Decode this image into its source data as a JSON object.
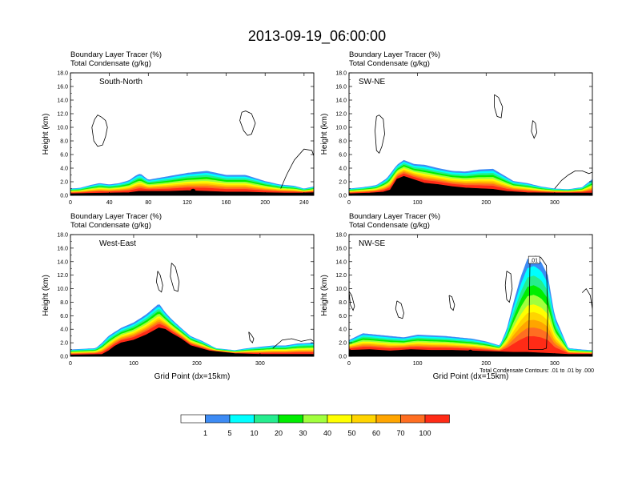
{
  "title": "2013-09-19_06:00:00",
  "chart_data": {
    "type": "heatmap",
    "title": "2013-09-19_06:00:00",
    "field_shaded": "Boundary Layer Tracer (%)",
    "field_contoured": "Total Condensate (g/kg)",
    "panels": [
      {
        "id": "south-north",
        "cross_section": "South-North",
        "title_line1": "Boundary Layer Tracer   (%)",
        "title_line2": "Total Condensate   (g/kg)",
        "ylabel": "Height (km)",
        "xlabel": "",
        "ylim": [
          0,
          18
        ],
        "yticks": [
          "0.0",
          "2.0",
          "4.0",
          "6.0",
          "8.0",
          "10.0",
          "12.0",
          "14.0",
          "16.0",
          "18.0"
        ],
        "xlim": [
          0,
          250
        ],
        "xticks": [
          "0",
          "40",
          "80",
          "120",
          "160",
          "200",
          "240"
        ],
        "xtick_values": [
          0,
          40,
          80,
          120,
          160,
          200,
          240
        ],
        "marker_x": 126,
        "profile": {
          "x": [
            0,
            10,
            20,
            30,
            40,
            50,
            60,
            68,
            72,
            80,
            100,
            120,
            140,
            160,
            180,
            200,
            215,
            230,
            240,
            250
          ],
          "h": [
            1.0,
            1.1,
            1.5,
            1.8,
            1.6,
            1.8,
            2.2,
            3.0,
            3.2,
            2.3,
            2.8,
            3.3,
            3.6,
            3.0,
            3.0,
            2.1,
            1.6,
            1.4,
            1.0,
            1.3
          ]
        },
        "ground": {
          "x": [
            0,
            20,
            40,
            60,
            70,
            80,
            100,
            120,
            140,
            160,
            180,
            200,
            220,
            240,
            250
          ],
          "h": [
            0.25,
            0.3,
            0.35,
            0.4,
            0.6,
            0.6,
            0.6,
            0.7,
            0.6,
            0.5,
            0.5,
            0.4,
            0.35,
            0.35,
            0.4
          ]
        },
        "contours": [
          {
            "x": [
              25,
              28,
              32,
              36,
              38,
              36,
              33,
              28,
              24,
              22,
              25
            ],
            "h": [
              11.2,
              11.8,
              11.5,
              11.0,
              10.0,
              8.6,
              7.4,
              7.2,
              8.0,
              10.0,
              11.2
            ]
          },
          {
            "x": [
              176,
              180,
              186,
              190,
              186,
              182,
              178,
              174,
              176
            ],
            "h": [
              12.2,
              12.4,
              12.0,
              10.6,
              9.0,
              8.8,
              9.5,
              11.0,
              12.2
            ]
          },
          {
            "x": [
              216,
              222,
              230,
              240,
              248,
              250
            ],
            "h": [
              1.0,
              3.0,
              5.2,
              6.8,
              6.6,
              5.8
            ]
          }
        ]
      },
      {
        "id": "sw-ne",
        "cross_section": "SW-NE",
        "title_line1": "Boundary Layer Tracer   (%)",
        "title_line2": "Total Condensate   (g/kg)",
        "ylabel": "Height (km)",
        "xlabel": "",
        "ylim": [
          0,
          18
        ],
        "yticks": [
          "0.0",
          "2.0",
          "4.0",
          "6.0",
          "8.0",
          "10.0",
          "12.0",
          "14.0",
          "16.0",
          "18.0"
        ],
        "xlim": [
          0,
          355
        ],
        "xticks": [
          "0",
          "100",
          "200",
          "300"
        ],
        "xtick_values": [
          0,
          100,
          200,
          300
        ],
        "marker_x": 176,
        "profile": {
          "x": [
            0,
            20,
            40,
            55,
            70,
            80,
            95,
            110,
            130,
            150,
            170,
            190,
            210,
            225,
            240,
            260,
            280,
            300,
            320,
            340,
            355
          ],
          "h": [
            1.0,
            1.2,
            1.5,
            2.5,
            4.5,
            5.2,
            4.6,
            4.5,
            4.0,
            3.6,
            3.5,
            3.8,
            3.9,
            3.0,
            2.1,
            1.8,
            1.3,
            1.0,
            0.9,
            1.2,
            2.4
          ]
        },
        "ground": {
          "x": [
            0,
            30,
            50,
            60,
            70,
            80,
            95,
            110,
            130,
            150,
            170,
            190,
            210,
            230,
            260,
            300,
            355
          ],
          "h": [
            0.25,
            0.35,
            0.5,
            0.8,
            2.4,
            2.8,
            2.3,
            1.8,
            1.6,
            1.3,
            1.1,
            1.0,
            0.9,
            0.6,
            0.4,
            0.35,
            0.35
          ]
        },
        "contours": [
          {
            "x": [
              40,
              44,
              50,
              52,
              48,
              44,
              40,
              38,
              40
            ],
            "h": [
              11.6,
              11.8,
              11.2,
              9.0,
              7.2,
              6.2,
              6.6,
              9.5,
              11.6
            ]
          },
          {
            "x": [
              212,
              218,
              224,
              222,
              216,
              212,
              212
            ],
            "h": [
              14.8,
              14.4,
              13.0,
              11.4,
              11.6,
              13.0,
              14.8
            ]
          },
          {
            "x": [
              268,
              272,
              274,
              270,
              266,
              268
            ],
            "h": [
              11.0,
              10.6,
              9.2,
              8.4,
              9.4,
              11.0
            ]
          },
          {
            "x": [
              300,
              310,
              320,
              330,
              340,
              350,
              355
            ],
            "h": [
              1.0,
              2.2,
              3.0,
              3.6,
              3.6,
              3.2,
              3.4
            ]
          }
        ]
      },
      {
        "id": "west-east",
        "cross_section": "West-East",
        "title_line1": "Boundary Layer Tracer   (%)",
        "title_line2": "Total Condensate   (g/kg)",
        "ylabel": "Height (km)",
        "xlabel": "Grid Point (dx=15km)",
        "ylim": [
          0,
          18
        ],
        "yticks": [
          "0.0",
          "2.0",
          "4.0",
          "6.0",
          "8.0",
          "10.0",
          "12.0",
          "14.0",
          "16.0",
          "18.0"
        ],
        "xlim": [
          0,
          385
        ],
        "xticks": [
          "0",
          "100",
          "200",
          "300"
        ],
        "xtick_values": [
          0,
          100,
          200,
          300
        ],
        "marker_x": 190,
        "profile": {
          "x": [
            0,
            20,
            40,
            50,
            60,
            80,
            100,
            120,
            140,
            150,
            160,
            175,
            190,
            210,
            230,
            260,
            280,
            300,
            320,
            340,
            360,
            385
          ],
          "h": [
            1.0,
            1.1,
            1.2,
            2.0,
            3.0,
            4.2,
            5.0,
            6.2,
            7.8,
            6.5,
            5.5,
            4.2,
            3.0,
            2.2,
            1.2,
            0.9,
            1.2,
            1.4,
            1.6,
            1.6,
            1.9,
            2.0
          ]
        },
        "ground": {
          "x": [
            0,
            30,
            50,
            60,
            70,
            80,
            100,
            120,
            140,
            150,
            160,
            175,
            190,
            220,
            260,
            300,
            340,
            385
          ],
          "h": [
            0.2,
            0.25,
            0.3,
            0.8,
            1.5,
            2.0,
            2.4,
            3.2,
            4.2,
            4.0,
            3.4,
            2.6,
            1.6,
            0.8,
            0.4,
            0.3,
            0.3,
            0.3
          ]
        },
        "contours": [
          {
            "x": [
              138,
              142,
              146,
              144,
              140,
              136,
              138
            ],
            "h": [
              12.6,
              12.0,
              10.5,
              9.5,
              9.8,
              11.0,
              12.6
            ]
          },
          {
            "x": [
              160,
              166,
              172,
              170,
              164,
              158,
              160
            ],
            "h": [
              13.8,
              13.2,
              11.0,
              9.6,
              9.8,
              11.8,
              13.8
            ]
          },
          {
            "x": [
              282,
              286,
              290,
              288,
              284,
              282
            ],
            "h": [
              3.6,
              3.2,
              2.6,
              2.0,
              2.4,
              3.6
            ]
          },
          {
            "x": [
              320,
              335,
              350,
              365,
              380,
              385
            ],
            "h": [
              1.2,
              2.4,
              2.6,
              2.2,
              2.5,
              2.2
            ]
          }
        ]
      },
      {
        "id": "nw-se",
        "cross_section": "NW-SE",
        "title_line1": "Boundary Layer Tracer   (%)",
        "title_line2": "Total Condensate   (g/kg)",
        "ylabel": "Height (km)",
        "xlabel": "Grid Point (dx=15km)",
        "ylim": [
          0,
          18
        ],
        "yticks": [
          "0.0",
          "2.0",
          "4.0",
          "6.0",
          "8.0",
          "10.0",
          "12.0",
          "14.0",
          "16.0",
          "18.0"
        ],
        "xlim": [
          0,
          355
        ],
        "xticks": [
          "0",
          "100",
          "200",
          "300"
        ],
        "xtick_values": [
          0,
          100,
          200,
          300
        ],
        "marker_x": 177,
        "note": "Total Condensate Contours: .01 to .01 by .000",
        "contour_label": ".01",
        "contour_label_pos": {
          "x": 270,
          "h": 14.2
        },
        "profile": {
          "x": [
            0,
            20,
            40,
            60,
            80,
            100,
            120,
            140,
            160,
            180,
            200,
            220,
            230,
            240,
            250,
            260,
            270,
            280,
            290,
            300,
            320,
            340,
            355
          ],
          "h": [
            2.4,
            3.4,
            3.2,
            3.0,
            2.8,
            3.2,
            3.1,
            3.0,
            2.8,
            2.6,
            2.2,
            1.6,
            4.0,
            8.0,
            11.6,
            14.4,
            14.8,
            14.0,
            12.0,
            6.0,
            1.2,
            1.0,
            0.9
          ]
        },
        "ground": {
          "x": [
            0,
            30,
            60,
            90,
            120,
            150,
            180,
            210,
            240,
            260,
            280,
            300,
            320,
            355
          ],
          "h": [
            0.9,
            1.0,
            0.8,
            1.0,
            0.9,
            0.9,
            0.8,
            0.7,
            0.6,
            0.6,
            0.5,
            0.4,
            0.3,
            0.3
          ]
        },
        "contours": [
          {
            "x": [
              262,
              264,
              272,
              280,
              288,
              290,
              288,
              282,
              270,
              264,
              262
            ],
            "h": [
              1.0,
              14.4,
              14.8,
              14.6,
              13.4,
              6.0,
              1.2,
              1.0,
              1.0,
              1.0,
              1.0
            ]
          },
          {
            "x": [
              230,
              236,
              238,
              234,
              230,
              228,
              230
            ],
            "h": [
              12.6,
              12.2,
              10.0,
              8.0,
              8.4,
              10.5,
              12.6
            ]
          },
          {
            "x": [
              0,
              4,
              8,
              6,
              2,
              0
            ],
            "h": [
              9.6,
              9.0,
              7.4,
              6.8,
              7.6,
              9.6
            ]
          },
          {
            "x": [
              70,
              76,
              80,
              78,
              72,
              68,
              70
            ],
            "h": [
              8.2,
              7.8,
              6.4,
              5.6,
              5.8,
              7.0,
              8.2
            ]
          },
          {
            "x": [
              146,
              150,
              154,
              152,
              148,
              146
            ],
            "h": [
              9.0,
              8.8,
              7.6,
              6.8,
              7.2,
              9.0
            ]
          },
          {
            "x": [
              340,
              346,
              352,
              355
            ],
            "h": [
              9.4,
              10.0,
              9.0,
              7.0
            ]
          }
        ]
      }
    ],
    "colorbar": {
      "levels": [
        "1",
        "5",
        "10",
        "20",
        "30",
        "40",
        "50",
        "60",
        "70",
        "100"
      ],
      "colors": [
        "#ffffff",
        "#3d8bf4",
        "#00ffff",
        "#25ed8f",
        "#00ee00",
        "#a1ff3d",
        "#ffff00",
        "#ffd400",
        "#ffa500",
        "#ff6e21",
        "#ff2b16"
      ]
    }
  }
}
